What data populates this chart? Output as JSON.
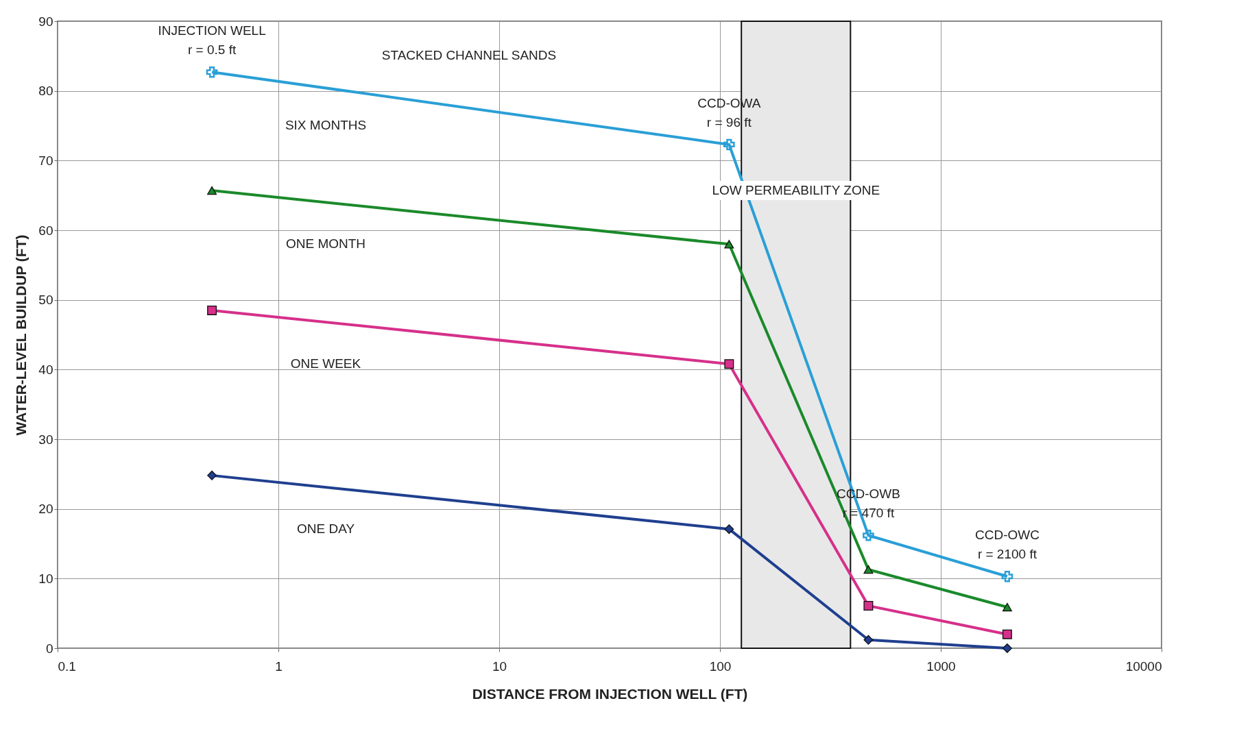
{
  "chart_data": {
    "type": "line",
    "xlabel": "DISTANCE FROM INJECTION WELL (FT)",
    "ylabel": "WATER-LEVEL BUILDUP (FT)",
    "x": [
      0.5,
      110,
      470,
      2000
    ],
    "series": [
      {
        "name": "SIX MONTHS",
        "color": "#2a9fd6",
        "marker": "cross",
        "values": [
          82.7,
          72.3,
          16.2,
          10.3
        ]
      },
      {
        "name": "ONE MONTH",
        "color": "#1a8a2a",
        "marker": "triangle",
        "values": [
          65.7,
          58.0,
          11.3,
          5.9
        ]
      },
      {
        "name": "ONE WEEK",
        "color": "#d6308a",
        "marker": "square",
        "values": [
          48.5,
          40.8,
          6.1,
          2.0
        ]
      },
      {
        "name": "ONE DAY",
        "color": "#1f3f8f",
        "marker": "diamond",
        "values": [
          24.8,
          17.1,
          1.2,
          0
        ]
      }
    ],
    "log": "x",
    "xlim": [
      0.1,
      10000
    ],
    "xticks": [
      0.1,
      1,
      10,
      100,
      1000,
      10000
    ],
    "ylim": [
      0,
      90
    ],
    "yticks": [
      0,
      10,
      20,
      30,
      40,
      50,
      60,
      70,
      80,
      90
    ],
    "grid": true,
    "bands": [
      {
        "axis": "x",
        "from": 125,
        "to": 390,
        "label": "LOW PERMEABILITY ZONE",
        "color": "#e8e8e8"
      }
    ],
    "annotations": [
      {
        "text": "INJECTION WELL\nr = 0.5 ft",
        "x": 0.5,
        "y": 82.7
      },
      {
        "text": "CCD-OWA\nr = 96 ft",
        "x": 110,
        "y": 72.3
      },
      {
        "text": "CCD-OWB\nr = 470 ft",
        "x": 470,
        "y": 16.2
      },
      {
        "text": "CCD-OWC\nr = 2100 ft",
        "x": 2000,
        "y": 10.3
      },
      "STACKED CHANNEL SANDS"
    ]
  }
}
